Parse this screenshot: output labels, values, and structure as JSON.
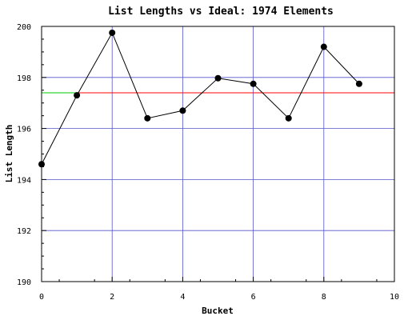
{
  "chart_data": {
    "type": "line",
    "title": "List Lengths vs Ideal: 1974 Elements",
    "xlabel": "Bucket",
    "ylabel": "List Length",
    "xlim": [
      0,
      10
    ],
    "ylim": [
      190,
      200
    ],
    "x_ticks": [
      "0",
      "2",
      "4",
      "6",
      "8",
      "10"
    ],
    "y_ticks": [
      "190",
      "192",
      "194",
      "196",
      "198",
      "200"
    ],
    "grid": true,
    "series": [
      {
        "x": [
          0,
          1,
          2,
          3,
          4,
          5,
          6,
          7,
          8,
          9
        ],
        "values": [
          194.6,
          197.3,
          199.75,
          196.4,
          196.7,
          197.97,
          197.75,
          196.4,
          199.2,
          197.75
        ],
        "color": "#000000",
        "marker": "circle"
      }
    ],
    "reference_line": {
      "value": 197.4,
      "color": "#ff0000"
    },
    "highlight_segment": {
      "x": [
        0,
        1
      ],
      "value": 197.4,
      "color": "#00cc00"
    },
    "grid_color": "#5555cc"
  }
}
